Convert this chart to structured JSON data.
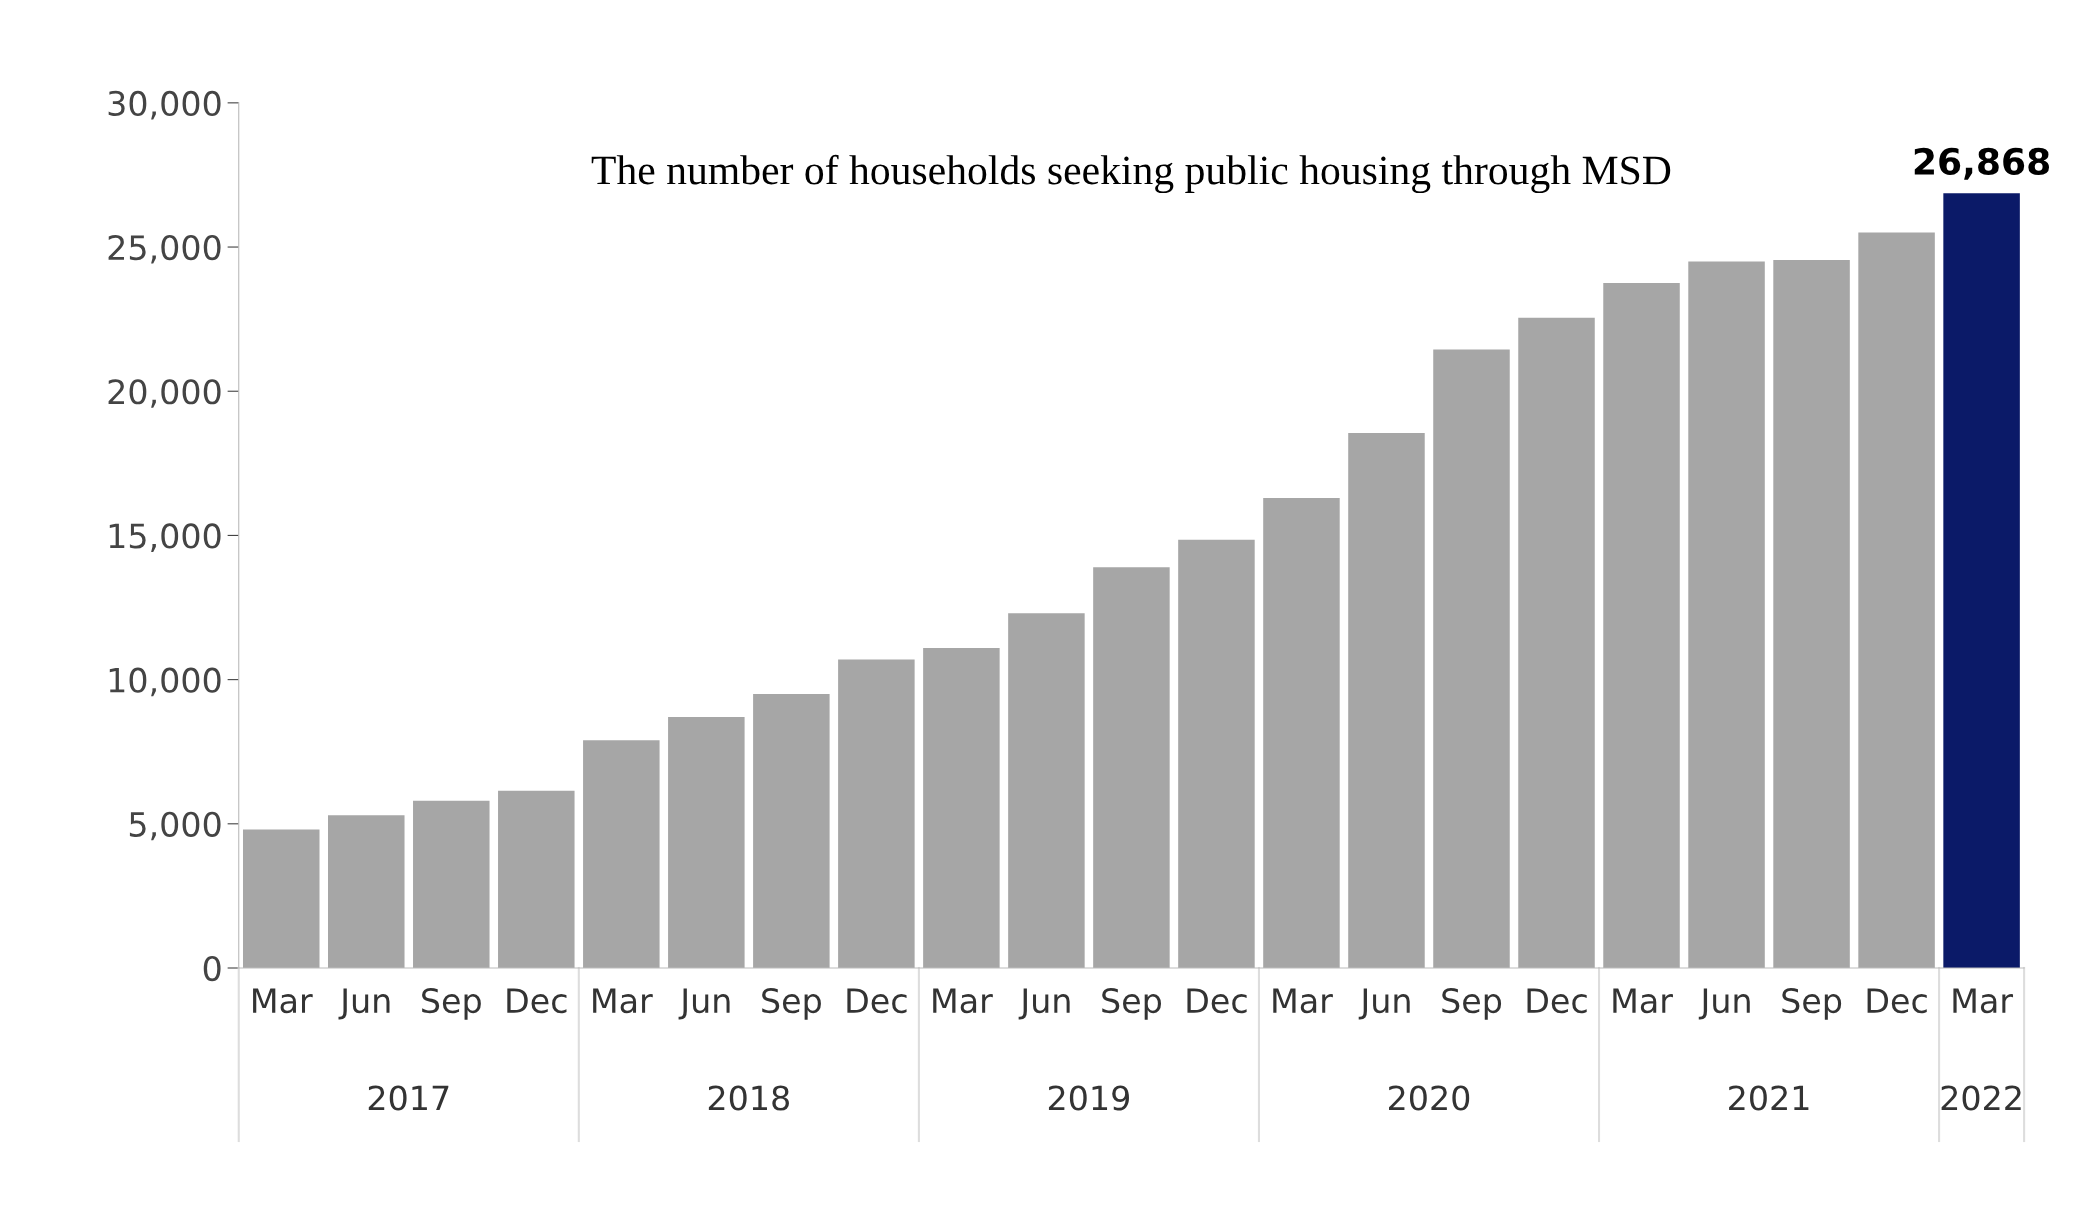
{
  "chart_data": {
    "type": "bar",
    "title": "The number of households seeking public housing through MSD",
    "categories": [
      "Mar",
      "Jun",
      "Sep",
      "Dec",
      "Mar",
      "Jun",
      "Sep",
      "Dec",
      "Mar",
      "Jun",
      "Sep",
      "Dec",
      "Mar",
      "Jun",
      "Sep",
      "Dec",
      "Mar",
      "Jun",
      "Sep",
      "Dec",
      "Mar"
    ],
    "values": [
      4800,
      5300,
      5800,
      6150,
      7900,
      8700,
      9500,
      10700,
      11100,
      12300,
      13900,
      14850,
      16300,
      18550,
      21450,
      22550,
      23750,
      24500,
      24550,
      25500,
      26868
    ],
    "colors": [
      "#a6a6a6",
      "#a6a6a6",
      "#a6a6a6",
      "#a6a6a6",
      "#a6a6a6",
      "#a6a6a6",
      "#a6a6a6",
      "#a6a6a6",
      "#a6a6a6",
      "#a6a6a6",
      "#a6a6a6",
      "#a6a6a6",
      "#a6a6a6",
      "#a6a6a6",
      "#a6a6a6",
      "#a6a6a6",
      "#a6a6a6",
      "#a6a6a6",
      "#a6a6a6",
      "#a6a6a6",
      "#0b1a68"
    ],
    "value_labels": [
      null,
      null,
      null,
      null,
      null,
      null,
      null,
      null,
      null,
      null,
      null,
      null,
      null,
      null,
      null,
      null,
      null,
      null,
      null,
      null,
      "26,868"
    ],
    "annotations": [
      "2017",
      "2018",
      "2019",
      "2020",
      "2021",
      "2022"
    ],
    "ylim": [
      0,
      30000
    ],
    "yticks": [
      {
        "value": 0,
        "label": "0"
      },
      {
        "value": 5000,
        "label": "5,000"
      },
      {
        "value": 10000,
        "label": "10,000"
      },
      {
        "value": 15000,
        "label": "15,000"
      },
      {
        "value": 20000,
        "label": "20,000"
      },
      {
        "value": 25000,
        "label": "25,000"
      },
      {
        "value": 30000,
        "label": "30,000"
      }
    ],
    "grid": false,
    "legend": false
  }
}
